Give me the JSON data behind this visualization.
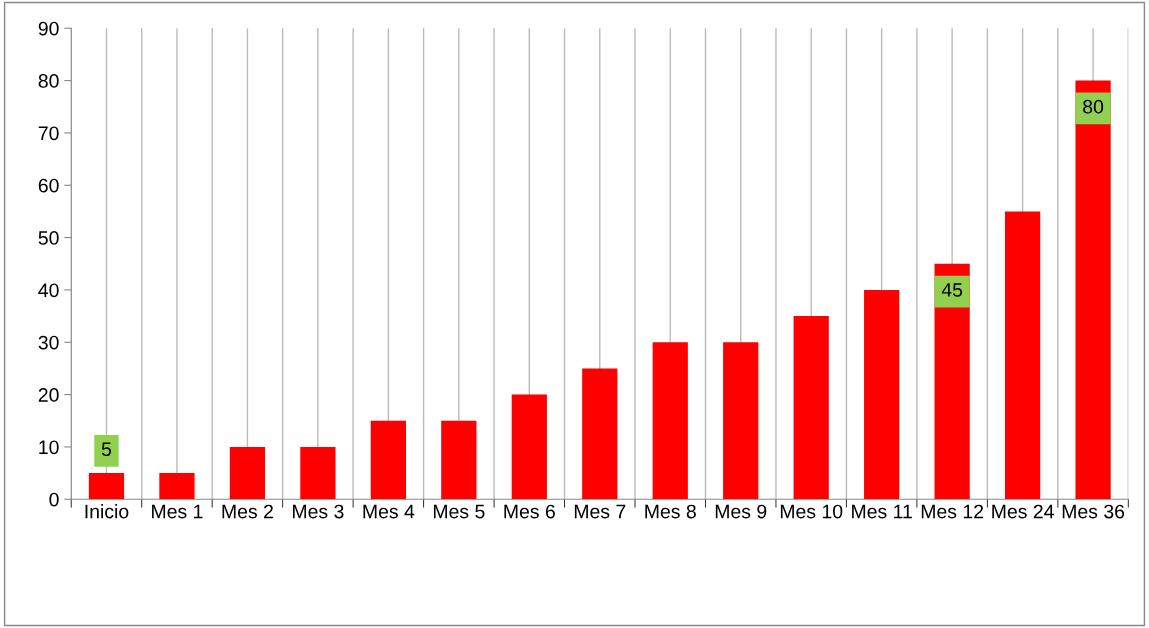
{
  "chart_data": {
    "type": "bar",
    "categories": [
      "Inicio",
      "Mes 1",
      "Mes 2",
      "Mes 3",
      "Mes 4",
      "Mes 5",
      "Mes 6",
      "Mes 7",
      "Mes 8",
      "Mes 9",
      "Mes 10",
      "Mes 11",
      "Mes 12",
      "Mes 24",
      "Mes 36"
    ],
    "values": [
      5,
      5,
      10,
      10,
      15,
      15,
      20,
      25,
      30,
      30,
      35,
      40,
      45,
      55,
      80
    ],
    "value_labels": [
      "5",
      null,
      null,
      null,
      null,
      null,
      null,
      null,
      null,
      null,
      null,
      null,
      "45",
      null,
      "80"
    ],
    "color": "#ff0000",
    "ylim": [
      0,
      90
    ],
    "yticks": [
      0,
      10,
      20,
      30,
      40,
      50,
      60,
      70,
      80,
      90
    ],
    "grid": "x"
  }
}
